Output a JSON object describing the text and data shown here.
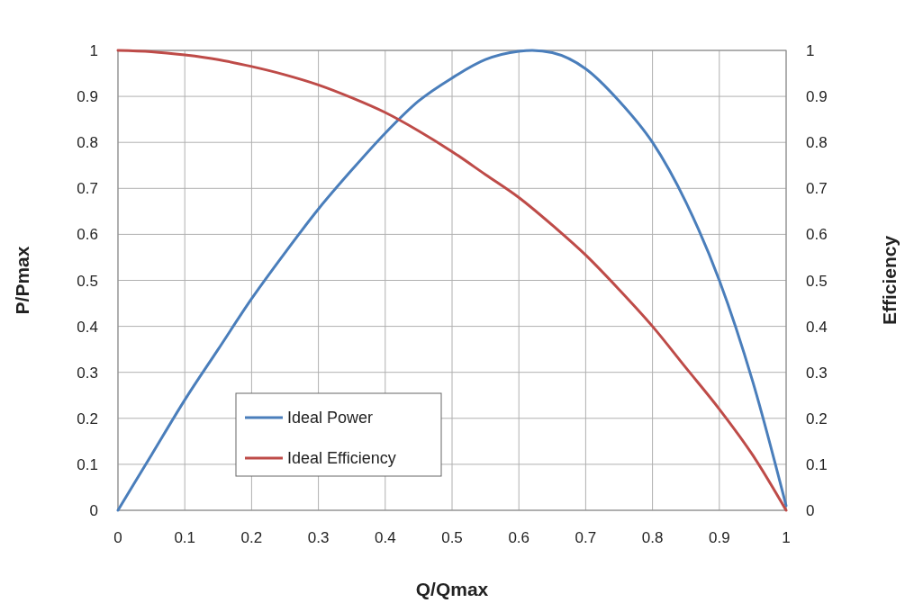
{
  "chart_data": {
    "type": "line",
    "xlabel": "Q/Qmax",
    "ylabel": "P/Pmax",
    "y2label": "Efficiency",
    "xlim": [
      0,
      1
    ],
    "xticks": [
      0,
      0.1,
      0.2,
      0.3,
      0.4,
      0.5,
      0.6,
      0.7,
      0.8,
      0.9,
      1
    ],
    "ylim": [
      0,
      1
    ],
    "yticks": [
      0,
      0.1,
      0.2,
      0.3,
      0.4,
      0.5,
      0.6,
      0.7,
      0.8,
      0.9,
      1
    ],
    "y2lim": [
      0,
      1
    ],
    "y2ticks": [
      0,
      0.1,
      0.2,
      0.3,
      0.4,
      0.5,
      0.6,
      0.7,
      0.8,
      0.9,
      1
    ],
    "grid": true,
    "legend": "bottom left",
    "marker": "none",
    "line_style": "solid",
    "series": [
      {
        "name": "Ideal Power",
        "color": "#4a7ebb",
        "x": [
          0,
          0.05,
          0.1,
          0.15,
          0.2,
          0.25,
          0.3,
          0.35,
          0.4,
          0.45,
          0.5,
          0.55,
          0.6,
          0.62,
          0.65,
          0.7,
          0.75,
          0.8,
          0.85,
          0.9,
          0.95,
          1
        ],
        "values": [
          0,
          0.12,
          0.24,
          0.35,
          0.46,
          0.56,
          0.655,
          0.74,
          0.82,
          0.89,
          0.94,
          0.98,
          0.998,
          1,
          0.995,
          0.96,
          0.89,
          0.8,
          0.67,
          0.5,
          0.28,
          0.01
        ]
      },
      {
        "name": "Ideal Efficiency",
        "color": "#be4b48",
        "axis": "y2",
        "x": [
          0,
          0.05,
          0.1,
          0.15,
          0.2,
          0.25,
          0.3,
          0.35,
          0.4,
          0.45,
          0.5,
          0.55,
          0.6,
          0.65,
          0.7,
          0.75,
          0.8,
          0.85,
          0.9,
          0.95,
          1
        ],
        "values": [
          1,
          0.997,
          0.99,
          0.98,
          0.965,
          0.947,
          0.925,
          0.897,
          0.865,
          0.825,
          0.78,
          0.73,
          0.68,
          0.62,
          0.555,
          0.48,
          0.4,
          0.31,
          0.22,
          0.12,
          0
        ]
      }
    ]
  }
}
